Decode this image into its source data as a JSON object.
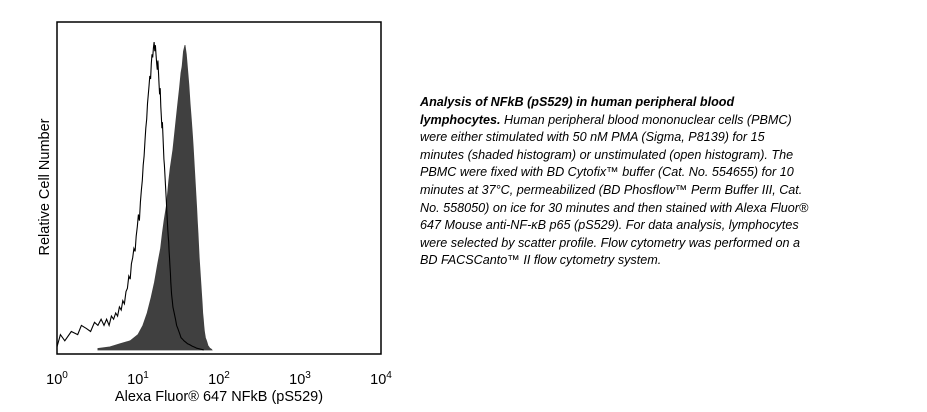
{
  "chart_data": {
    "type": "area",
    "xlabel": "Alexa Fluor® 647 NFkB (pS529)",
    "ylabel": "Relative Cell Number",
    "x_scale": "log",
    "xlim": [
      1,
      10000
    ],
    "x_ticks": [
      {
        "base": "10",
        "exp": "0",
        "value": 1
      },
      {
        "base": "10",
        "exp": "1",
        "value": 10
      },
      {
        "base": "10",
        "exp": "2",
        "value": 100
      },
      {
        "base": "10",
        "exp": "3",
        "value": 1000
      },
      {
        "base": "10",
        "exp": "4",
        "value": 10000
      }
    ],
    "ylim": [
      0,
      1
    ],
    "grid": false,
    "series": [
      {
        "style": "filled",
        "color": "#404040",
        "x": [
          3.2,
          4.5,
          6,
          8,
          10,
          11.5,
          13,
          14.5,
          16,
          17.5,
          19,
          20,
          21,
          22.5,
          24,
          25,
          27,
          29,
          31,
          32.5,
          34,
          35,
          36.5,
          38,
          39.5,
          41,
          42.5,
          44,
          45.5,
          47,
          48,
          49,
          50,
          51,
          52,
          53,
          54,
          55,
          56,
          57,
          58,
          59,
          60,
          61,
          62,
          63,
          64,
          65,
          66,
          67,
          68,
          69,
          70,
          71,
          72,
          73,
          74,
          75,
          76,
          77,
          78,
          79,
          80,
          81,
          82
        ],
        "y": [
          0.005,
          0.01,
          0.02,
          0.03,
          0.05,
          0.08,
          0.12,
          0.17,
          0.22,
          0.28,
          0.33,
          0.38,
          0.42,
          0.47,
          0.55,
          0.59,
          0.65,
          0.73,
          0.8,
          0.85,
          0.9,
          0.92,
          0.97,
          0.99,
          0.96,
          0.91,
          0.86,
          0.8,
          0.75,
          0.7,
          0.66,
          0.62,
          0.58,
          0.54,
          0.5,
          0.46,
          0.42,
          0.38,
          0.34,
          0.3,
          0.27,
          0.24,
          0.21,
          0.18,
          0.15,
          0.12,
          0.1,
          0.08,
          0.06,
          0.05,
          0.04,
          0.035,
          0.03,
          0.025,
          0.02,
          0.015,
          0.012,
          0.01,
          0.008,
          0.006,
          0.005,
          0.004,
          0.003,
          0.002,
          0.0
        ]
      },
      {
        "style": "open",
        "color": "#000000",
        "x": [
          1.0,
          1.1,
          1.25,
          1.5,
          1.8,
          2.0,
          2.3,
          2.6,
          2.9,
          3.2,
          3.5,
          3.8,
          4.1,
          4.4,
          4.7,
          5.0,
          5.3,
          5.6,
          5.9,
          6.2,
          6.5,
          6.8,
          7.1,
          7.4,
          7.7,
          8.0,
          8.3,
          8.6,
          8.9,
          9.2,
          9.5,
          9.8,
          10.1,
          10.4,
          10.7,
          11.0,
          11.3,
          11.6,
          11.9,
          12.2,
          12.5,
          12.8,
          13.1,
          13.4,
          13.7,
          14.0,
          14.3,
          14.6,
          14.9,
          15.2,
          15.5,
          15.8,
          16.1,
          16.4,
          16.7,
          17.0,
          17.3,
          17.6,
          17.9,
          18.2,
          18.5,
          18.8,
          19.1,
          19.4,
          19.7,
          20.0,
          20.3,
          20.6,
          20.9,
          21.2,
          21.5,
          21.8,
          22.1,
          22.4,
          22.7,
          23.0,
          23.3,
          23.6,
          23.9,
          24.2,
          24.5,
          24.8,
          25.1,
          25.4,
          25.7,
          26.0,
          26.5,
          27,
          28,
          29,
          30,
          31,
          32,
          33,
          34,
          35.5,
          37,
          39,
          41,
          43,
          45,
          47,
          49,
          51,
          53,
          55,
          57,
          59,
          61,
          63,
          65
        ],
        "y": [
          0.01,
          0.05,
          0.03,
          0.06,
          0.05,
          0.08,
          0.07,
          0.06,
          0.09,
          0.08,
          0.1,
          0.08,
          0.1,
          0.08,
          0.11,
          0.1,
          0.12,
          0.11,
          0.14,
          0.13,
          0.16,
          0.15,
          0.19,
          0.2,
          0.24,
          0.23,
          0.28,
          0.3,
          0.33,
          0.32,
          0.37,
          0.4,
          0.44,
          0.42,
          0.48,
          0.52,
          0.55,
          0.6,
          0.63,
          0.68,
          0.72,
          0.75,
          0.8,
          0.83,
          0.86,
          0.89,
          0.88,
          0.93,
          0.96,
          0.95,
          0.98,
          1.0,
          0.97,
          0.99,
          0.96,
          0.93,
          0.91,
          0.94,
          0.9,
          0.86,
          0.83,
          0.85,
          0.79,
          0.76,
          0.72,
          0.74,
          0.7,
          0.66,
          0.62,
          0.6,
          0.57,
          0.54,
          0.51,
          0.48,
          0.45,
          0.42,
          0.39,
          0.37,
          0.35,
          0.32,
          0.3,
          0.27,
          0.25,
          0.22,
          0.2,
          0.18,
          0.16,
          0.14,
          0.12,
          0.1,
          0.08,
          0.07,
          0.06,
          0.05,
          0.04,
          0.035,
          0.03,
          0.025,
          0.02,
          0.018,
          0.015,
          0.012,
          0.01,
          0.008,
          0.006,
          0.005,
          0.004,
          0.003,
          0.002,
          0.001,
          0.0
        ]
      }
    ]
  },
  "caption": {
    "title": "Analysis of NFkB (pS529) in human peripheral blood lymphocytes.",
    "body": " Human peripheral blood mononuclear cells (PBMC) were either stimulated with 50 nM PMA (Sigma, P8139) for 15 minutes (shaded histogram) or unstimulated (open histogram). The PBMC were fixed with BD Cytofix™ buffer (Cat. No. 554655) for 10 minutes at 37°C, permeabilized (BD Phosflow™ Perm Buffer III, Cat. No. 558050) on ice for 30 minutes and then stained with Alexa Fluor® 647 Mouse anti-NF-κB p65 (pS529). For data analysis, lymphocytes were selected by scatter profile. Flow cytometry was performed on a BD FACSCanto™ II flow cytometry system."
  }
}
